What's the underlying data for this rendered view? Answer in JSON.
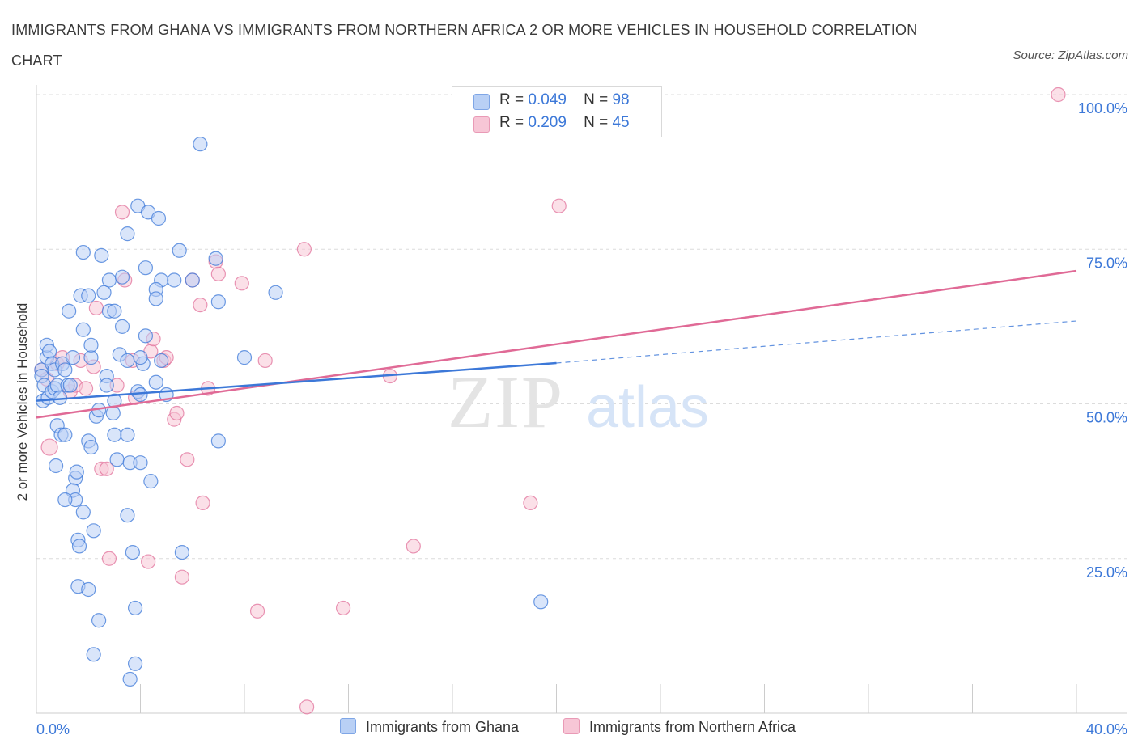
{
  "title": "IMMIGRANTS FROM GHANA VS IMMIGRANTS FROM NORTHERN AFRICA 2 OR MORE VEHICLES IN HOUSEHOLD CORRELATION CHART",
  "source": "Source: ZipAtlas.com",
  "watermark": {
    "zip": "ZIP",
    "atlas": "atlas"
  },
  "legend": {
    "ghana": {
      "r_label": "R =",
      "r_value": "0.049",
      "n_label": "N =",
      "n_value": "98"
    },
    "nafrica": {
      "r_label": "R =",
      "r_value": "0.209",
      "n_label": "N =",
      "n_value": "45"
    }
  },
  "bottom_legend": {
    "ghana": "Immigrants from Ghana",
    "nafrica": "Immigrants from Northern Africa"
  },
  "colors": {
    "ghana": "#3c78d8",
    "ghana_fill": "#b9d0f5",
    "nafrica": "#e06a96",
    "nafrica_fill": "#f7c6d6",
    "tick_text": "#3c78d8"
  },
  "chart_data": {
    "type": "scatter",
    "title": "IMMIGRANTS FROM GHANA VS IMMIGRANTS FROM NORTHERN AFRICA 2 OR MORE VEHICLES IN HOUSEHOLD CORRELATION CHART",
    "xlabel": "",
    "ylabel": "2 or more Vehicles in Household",
    "xlim": [
      0,
      40
    ],
    "ylim": [
      0,
      100
    ],
    "x_tick_labels": [
      "0.0%",
      "40.0%"
    ],
    "y_ticks": [
      25,
      50,
      75,
      100
    ],
    "y_tick_labels": [
      "25.0%",
      "50.0%",
      "75.0%",
      "100.0%"
    ],
    "grid": true,
    "legend_position": "top-center",
    "series": [
      {
        "name": "Immigrants from Ghana",
        "points": [
          [
            0.2,
            55.5
          ],
          [
            0.2,
            54.5
          ],
          [
            0.3,
            53
          ],
          [
            0.25,
            50.5
          ],
          [
            0.4,
            57.5
          ],
          [
            0.4,
            59.5
          ],
          [
            0.5,
            58.5
          ],
          [
            0.45,
            51
          ],
          [
            0.6,
            52
          ],
          [
            0.6,
            56.5
          ],
          [
            0.7,
            55.5
          ],
          [
            0.7,
            52.5
          ],
          [
            0.8,
            53
          ],
          [
            0.9,
            51
          ],
          [
            0.8,
            46.5
          ],
          [
            0.75,
            40
          ],
          [
            0.95,
            45
          ],
          [
            1.1,
            45
          ],
          [
            1.0,
            56.5
          ],
          [
            1.1,
            55.5
          ],
          [
            1.2,
            53
          ],
          [
            1.3,
            53
          ],
          [
            1.25,
            65
          ],
          [
            1.4,
            57.5
          ],
          [
            1.5,
            38
          ],
          [
            1.55,
            39
          ],
          [
            1.4,
            36
          ],
          [
            1.5,
            34.5
          ],
          [
            1.1,
            34.5
          ],
          [
            1.6,
            28
          ],
          [
            1.65,
            27
          ],
          [
            1.6,
            20.5
          ],
          [
            1.8,
            32.5
          ],
          [
            1.8,
            62
          ],
          [
            1.8,
            74.5
          ],
          [
            1.7,
            67.5
          ],
          [
            2.1,
            57.5
          ],
          [
            2.0,
            67.5
          ],
          [
            2.1,
            59.5
          ],
          [
            2.0,
            44
          ],
          [
            2.1,
            43
          ],
          [
            2.3,
            48
          ],
          [
            2.4,
            49
          ],
          [
            2.2,
            29.5
          ],
          [
            2.0,
            20
          ],
          [
            2.4,
            15
          ],
          [
            2.2,
            9.5
          ],
          [
            2.5,
            74
          ],
          [
            2.6,
            68
          ],
          [
            2.7,
            54.5
          ],
          [
            2.7,
            53
          ],
          [
            2.8,
            65
          ],
          [
            3.0,
            65
          ],
          [
            2.8,
            70
          ],
          [
            3.0,
            50.5
          ],
          [
            2.95,
            48.5
          ],
          [
            3.0,
            45
          ],
          [
            3.1,
            41
          ],
          [
            3.3,
            62.5
          ],
          [
            3.3,
            70.5
          ],
          [
            3.2,
            58
          ],
          [
            3.5,
            77.5
          ],
          [
            3.5,
            57
          ],
          [
            3.5,
            45
          ],
          [
            3.6,
            40.5
          ],
          [
            3.5,
            32
          ],
          [
            3.7,
            26
          ],
          [
            3.8,
            17
          ],
          [
            3.8,
            8
          ],
          [
            3.6,
            5.5
          ],
          [
            3.9,
            82
          ],
          [
            3.9,
            52
          ],
          [
            4.0,
            51.5
          ],
          [
            4.0,
            40.5
          ],
          [
            4.2,
            72
          ],
          [
            4.2,
            61
          ],
          [
            4.3,
            81
          ],
          [
            4.4,
            37.5
          ],
          [
            4.1,
            56.5
          ],
          [
            4.0,
            57.5
          ],
          [
            4.7,
            80
          ],
          [
            4.8,
            70
          ],
          [
            4.8,
            57
          ],
          [
            4.6,
            68.5
          ],
          [
            4.6,
            67
          ],
          [
            4.6,
            53.5
          ],
          [
            5.0,
            51.5
          ],
          [
            5.3,
            70
          ],
          [
            5.6,
            26
          ],
          [
            6.0,
            70
          ],
          [
            6.3,
            92
          ],
          [
            7.0,
            44
          ],
          [
            7.0,
            66.5
          ],
          [
            8.0,
            57.5
          ],
          [
            9.2,
            68
          ],
          [
            6.9,
            73.5
          ],
          [
            5.5,
            74.8
          ],
          [
            19.4,
            18
          ]
        ]
      },
      {
        "name": "Immigrants from Northern Africa",
        "points": [
          [
            0.2,
            55.5
          ],
          [
            0.4,
            54
          ],
          [
            0.5,
            43
          ],
          [
            0.8,
            56.5
          ],
          [
            1.0,
            57.5
          ],
          [
            1.3,
            52
          ],
          [
            1.5,
            53
          ],
          [
            1.7,
            57
          ],
          [
            1.9,
            52.5
          ],
          [
            2.2,
            56
          ],
          [
            2.3,
            65.5
          ],
          [
            2.5,
            39.5
          ],
          [
            2.7,
            39.5
          ],
          [
            2.8,
            25
          ],
          [
            3.1,
            53
          ],
          [
            3.3,
            81
          ],
          [
            3.4,
            70
          ],
          [
            3.7,
            57
          ],
          [
            3.8,
            51
          ],
          [
            4.3,
            24.5
          ],
          [
            4.4,
            58.5
          ],
          [
            4.5,
            60.5
          ],
          [
            4.9,
            57
          ],
          [
            5.3,
            47.5
          ],
          [
            5.4,
            48.5
          ],
          [
            5.6,
            22
          ],
          [
            5.8,
            41
          ],
          [
            6.0,
            70
          ],
          [
            6.3,
            66
          ],
          [
            6.4,
            34
          ],
          [
            6.6,
            52.5
          ],
          [
            6.9,
            73
          ],
          [
            7.0,
            71
          ],
          [
            7.9,
            69.5
          ],
          [
            8.5,
            16.5
          ],
          [
            8.8,
            57
          ],
          [
            10.3,
            75
          ],
          [
            10.4,
            1
          ],
          [
            11.8,
            17
          ],
          [
            13.6,
            54.5
          ],
          [
            14.5,
            27
          ],
          [
            19.0,
            34
          ],
          [
            20.1,
            82
          ],
          [
            39.3,
            100
          ],
          [
            5.0,
            57.5
          ]
        ]
      }
    ],
    "trend_lines": [
      {
        "series": "Immigrants from Ghana",
        "x": [
          0,
          20
        ],
        "y": [
          50.5,
          56.6
        ],
        "dashed_extension": {
          "x": [
            20,
            40
          ],
          "y": [
            56.6,
            63.4
          ]
        }
      },
      {
        "series": "Immigrants from Northern Africa",
        "x": [
          0,
          40
        ],
        "y": [
          47.8,
          71.5
        ]
      }
    ]
  }
}
